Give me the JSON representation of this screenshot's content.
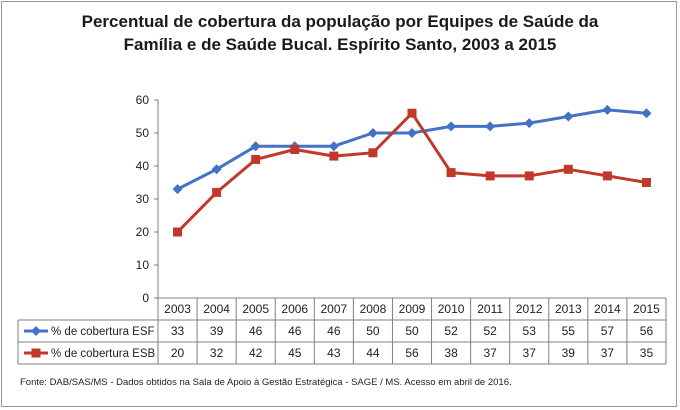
{
  "chart_data": {
    "type": "line",
    "title": [
      "Percentual de cobertura da população por Equipes de Saúde da",
      "Família e de Saúde Bucal. Espírito Santo, 2003 a 2015"
    ],
    "categories": [
      "2003",
      "2004",
      "2005",
      "2006",
      "2007",
      "2008",
      "2009",
      "2010",
      "2011",
      "2012",
      "2013",
      "2014",
      "2015"
    ],
    "series": [
      {
        "name": "% de cobertura ESF",
        "color": "#4472c4",
        "marker": "diamond",
        "values": [
          33,
          39,
          46,
          46,
          46,
          50,
          50,
          52,
          52,
          53,
          55,
          57,
          56
        ]
      },
      {
        "name": "% de cobertura ESB",
        "color": "#c0392b",
        "marker": "square",
        "values": [
          20,
          32,
          42,
          45,
          43,
          44,
          56,
          38,
          37,
          37,
          39,
          37,
          35
        ]
      }
    ],
    "ylim": [
      0,
      60
    ],
    "yticks": [
      0,
      10,
      20,
      30,
      40,
      50,
      60
    ],
    "grid": false,
    "legend": "data-table",
    "source": "Fonte: DAB/SAS/MS - Dados obtidos na Sala de Apoio à Gestão Estratégica - SAGE / MS. Acesso em abril de 2016."
  }
}
